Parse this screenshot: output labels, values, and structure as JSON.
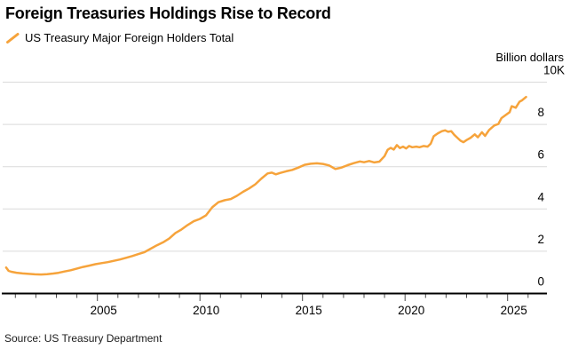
{
  "header": {
    "title": "Foreign Treasuries Holdings Rise to Record",
    "legend": {
      "marker": "orange-slash",
      "label": "US Treasury Major Foreign Holders Total",
      "color": "#F6A33B"
    }
  },
  "footer": {
    "source": "Source: US Treasury Department"
  },
  "colors": {
    "series_orange": "#F6A33B",
    "gridline": "#DADADA",
    "axis_line": "#000000",
    "tick": "#4A4A4A"
  },
  "chart_data": {
    "type": "line",
    "title": "Foreign Treasuries Holdings Rise to Record",
    "unit_label": "Billion dollars",
    "xlabel": "",
    "ylabel": "Billion dollars",
    "x_range": [
      2000.5,
      2026.8
    ],
    "ylim": [
      0,
      10000
    ],
    "grid": "horizontal",
    "legend_position": "top-left",
    "y_ticks": [
      {
        "value": 0,
        "label": "0"
      },
      {
        "value": 2000,
        "label": "2"
      },
      {
        "value": 4000,
        "label": "4"
      },
      {
        "value": 6000,
        "label": "6"
      },
      {
        "value": 8000,
        "label": "8"
      },
      {
        "value": 10000,
        "label": "10K"
      }
    ],
    "x_minor_tick_years": [
      2001,
      2002,
      2003,
      2004,
      2005,
      2006,
      2007,
      2008,
      2009,
      2010,
      2011,
      2012,
      2013,
      2014,
      2015,
      2016,
      2017,
      2018,
      2019,
      2020,
      2021,
      2022,
      2023,
      2024,
      2025,
      2026
    ],
    "x_major_tick_years": [
      2005,
      2010,
      2015,
      2020,
      2025
    ],
    "series": [
      {
        "name": "US Treasury Major Foreign Holders Total",
        "color": "#F6A33B",
        "points": [
          [
            2000.55,
            1230
          ],
          [
            2000.67,
            1070
          ],
          [
            2000.8,
            1030
          ],
          [
            2001.05,
            985
          ],
          [
            2001.35,
            950
          ],
          [
            2001.65,
            928
          ],
          [
            2001.95,
            908
          ],
          [
            2002.25,
            900
          ],
          [
            2002.55,
            916
          ],
          [
            2002.85,
            945
          ],
          [
            2003.1,
            978
          ],
          [
            2003.4,
            1040
          ],
          [
            2003.7,
            1100
          ],
          [
            2004.0,
            1180
          ],
          [
            2004.3,
            1255
          ],
          [
            2004.6,
            1320
          ],
          [
            2004.9,
            1385
          ],
          [
            2005.2,
            1435
          ],
          [
            2005.5,
            1485
          ],
          [
            2005.8,
            1545
          ],
          [
            2006.1,
            1610
          ],
          [
            2006.4,
            1690
          ],
          [
            2006.7,
            1775
          ],
          [
            2007.0,
            1865
          ],
          [
            2007.3,
            1960
          ],
          [
            2007.6,
            2120
          ],
          [
            2007.9,
            2280
          ],
          [
            2008.2,
            2420
          ],
          [
            2008.5,
            2600
          ],
          [
            2008.8,
            2860
          ],
          [
            2009.1,
            3030
          ],
          [
            2009.4,
            3240
          ],
          [
            2009.7,
            3420
          ],
          [
            2010.0,
            3530
          ],
          [
            2010.3,
            3700
          ],
          [
            2010.6,
            4080
          ],
          [
            2010.9,
            4320
          ],
          [
            2011.2,
            4410
          ],
          [
            2011.5,
            4470
          ],
          [
            2011.8,
            4620
          ],
          [
            2012.1,
            4810
          ],
          [
            2012.4,
            4970
          ],
          [
            2012.7,
            5170
          ],
          [
            2013.0,
            5440
          ],
          [
            2013.3,
            5680
          ],
          [
            2013.5,
            5720
          ],
          [
            2013.7,
            5640
          ],
          [
            2013.9,
            5700
          ],
          [
            2014.2,
            5780
          ],
          [
            2014.5,
            5850
          ],
          [
            2014.8,
            5960
          ],
          [
            2015.1,
            6090
          ],
          [
            2015.4,
            6140
          ],
          [
            2015.7,
            6160
          ],
          [
            2016.0,
            6130
          ],
          [
            2016.3,
            6060
          ],
          [
            2016.6,
            5890
          ],
          [
            2016.9,
            5960
          ],
          [
            2017.2,
            6070
          ],
          [
            2017.5,
            6170
          ],
          [
            2017.8,
            6250
          ],
          [
            2018.0,
            6210
          ],
          [
            2018.25,
            6270
          ],
          [
            2018.5,
            6200
          ],
          [
            2018.75,
            6240
          ],
          [
            2019.0,
            6500
          ],
          [
            2019.15,
            6800
          ],
          [
            2019.3,
            6890
          ],
          [
            2019.45,
            6810
          ],
          [
            2019.6,
            7020
          ],
          [
            2019.75,
            6880
          ],
          [
            2019.9,
            6950
          ],
          [
            2020.05,
            6860
          ],
          [
            2020.2,
            6980
          ],
          [
            2020.35,
            6920
          ],
          [
            2020.55,
            6950
          ],
          [
            2020.7,
            6920
          ],
          [
            2020.9,
            6980
          ],
          [
            2021.1,
            6950
          ],
          [
            2021.25,
            7090
          ],
          [
            2021.4,
            7440
          ],
          [
            2021.6,
            7580
          ],
          [
            2021.8,
            7680
          ],
          [
            2021.95,
            7720
          ],
          [
            2022.1,
            7650
          ],
          [
            2022.25,
            7680
          ],
          [
            2022.4,
            7510
          ],
          [
            2022.55,
            7370
          ],
          [
            2022.7,
            7230
          ],
          [
            2022.85,
            7160
          ],
          [
            2023.0,
            7260
          ],
          [
            2023.2,
            7370
          ],
          [
            2023.4,
            7530
          ],
          [
            2023.55,
            7390
          ],
          [
            2023.75,
            7630
          ],
          [
            2023.9,
            7460
          ],
          [
            2024.1,
            7740
          ],
          [
            2024.35,
            7950
          ],
          [
            2024.55,
            8020
          ],
          [
            2024.7,
            8300
          ],
          [
            2024.9,
            8440
          ],
          [
            2025.1,
            8580
          ],
          [
            2025.2,
            8860
          ],
          [
            2025.4,
            8790
          ],
          [
            2025.58,
            9070
          ],
          [
            2025.7,
            9140
          ],
          [
            2025.9,
            9300
          ]
        ]
      }
    ]
  }
}
